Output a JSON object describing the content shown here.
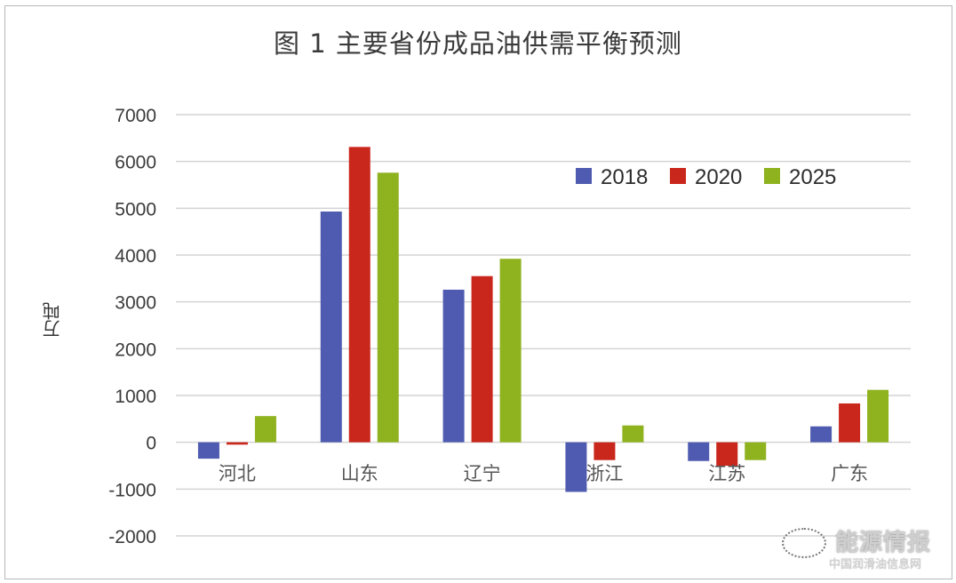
{
  "title": "图 1  主要省份成品油供需平衡预测",
  "y_axis": {
    "label": "万吨",
    "ticks": [
      "7000",
      "6000",
      "5000",
      "4000",
      "3000",
      "2000",
      "1000",
      "0",
      "-1000",
      "-2000"
    ]
  },
  "legend": [
    {
      "label": "2018",
      "color": "#4f5bb0"
    },
    {
      "label": "2020",
      "color": "#c9261c"
    },
    {
      "label": "2025",
      "color": "#8fb21f"
    }
  ],
  "categories_labels": [
    "河北",
    "山东",
    "辽宁",
    "浙江",
    "江苏",
    "广东"
  ],
  "watermark": {
    "main": "能源情报",
    "sub": "中国润滑油信息网"
  },
  "chart_data": {
    "type": "bar",
    "title": "图 1  主要省份成品油供需平衡预测",
    "xlabel": "",
    "ylabel": "万吨",
    "categories": [
      "河北",
      "山东",
      "辽宁",
      "浙江",
      "江苏",
      "广东"
    ],
    "series": [
      {
        "name": "2018",
        "color": "#4f5bb0",
        "values": [
          -350,
          4930,
          3260,
          -1060,
          -400,
          340
        ]
      },
      {
        "name": "2020",
        "color": "#c9261c",
        "values": [
          -50,
          6310,
          3550,
          -380,
          -500,
          830
        ]
      },
      {
        "name": "2025",
        "color": "#8fb21f",
        "values": [
          560,
          5760,
          3920,
          360,
          -380,
          1120
        ]
      }
    ],
    "ylim": [
      -2000,
      7000
    ],
    "yticks": [
      -2000,
      -1000,
      0,
      1000,
      2000,
      3000,
      4000,
      5000,
      6000,
      7000
    ],
    "grid": true,
    "legend_position": "upper right inside plot"
  }
}
